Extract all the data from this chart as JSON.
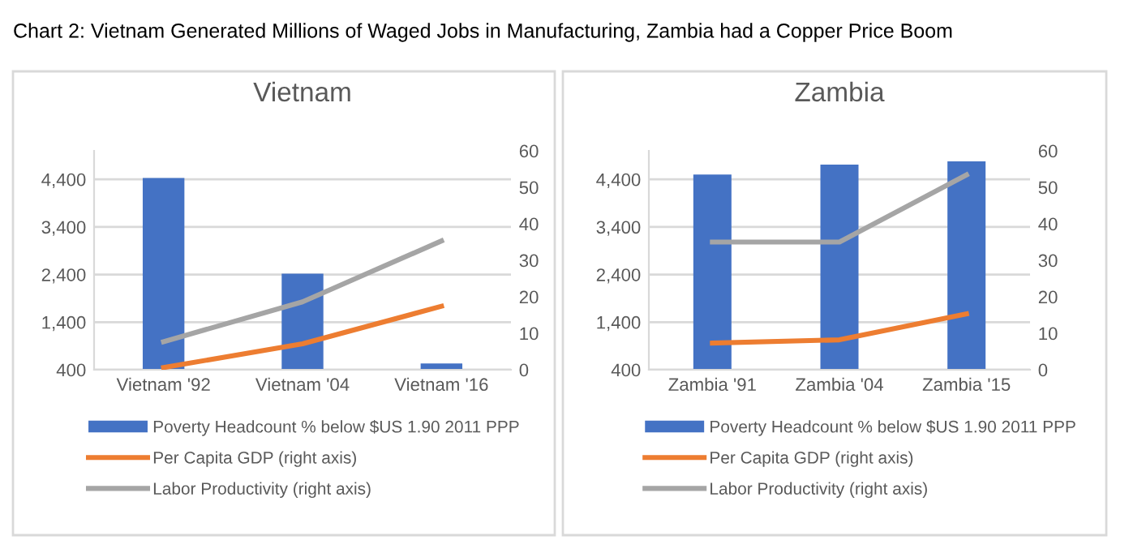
{
  "chart_data": [
    {
      "type": "bar",
      "title": "Vietnam",
      "categories": [
        "Vietnam '92",
        "Vietnam '04",
        "Vietnam '16"
      ],
      "series": [
        {
          "name": "Poverty Headcount % below $US 1.90 2011 PPP",
          "color": "#4472c4",
          "values": [
            4430,
            2420,
            530
          ]
        },
        {
          "name": "Per Capita GDP (right axis)",
          "type": "line",
          "axis": "y2",
          "color": "#ed7d31",
          "values": [
            0.6,
            7.1,
            17.4
          ]
        },
        {
          "name": "Labor Productivity (right axis)",
          "type": "line",
          "axis": "y2",
          "color": "#a5a5a5",
          "values": [
            7.7,
            18.6,
            35.3
          ]
        }
      ],
      "ylim": [
        400,
        5000
      ],
      "yticks": [
        {
          "value": 400,
          "label": "400"
        },
        {
          "value": 1400,
          "label": "1,400"
        },
        {
          "value": 2400,
          "label": "2,400"
        },
        {
          "value": 3400,
          "label": "3,400"
        },
        {
          "value": 4400,
          "label": "4,400"
        }
      ],
      "y2lim": [
        0,
        60
      ],
      "y2ticks": [
        0,
        10,
        20,
        30,
        40,
        50,
        60
      ],
      "grid": "y",
      "legend": "bottom",
      "annotations": [
        "Chart 2: Vietnam Generated Millions of Waged Jobs in Manufacturing, Zambia had a Copper Price Boom"
      ]
    },
    {
      "type": "bar",
      "title": "Zambia",
      "categories": [
        "Zambia '91",
        "Zambia '04",
        "Zambia '15"
      ],
      "series": [
        {
          "name": "Poverty Headcount % below $US 1.90 2011 PPP",
          "color": "#4472c4",
          "values": [
            4500,
            4710,
            4780
          ]
        },
        {
          "name": "Per Capita GDP (right axis)",
          "type": "line",
          "axis": "y2",
          "color": "#ed7d31",
          "values": [
            7.3,
            8.2,
            15.3
          ]
        },
        {
          "name": "Labor Productivity (right axis)",
          "type": "line",
          "axis": "y2",
          "color": "#a5a5a5",
          "values": [
            35,
            35,
            53.4
          ]
        }
      ],
      "ylim": [
        400,
        5000
      ],
      "yticks": [
        {
          "value": 400,
          "label": "400"
        },
        {
          "value": 1400,
          "label": "1,400"
        },
        {
          "value": 2400,
          "label": "2,400"
        },
        {
          "value": 3400,
          "label": "3,400"
        },
        {
          "value": 4400,
          "label": "4,400"
        }
      ],
      "y2lim": [
        0,
        60
      ],
      "y2ticks": [
        0,
        10,
        20,
        30,
        40,
        50,
        60
      ],
      "grid": "y",
      "legend": "bottom"
    }
  ]
}
